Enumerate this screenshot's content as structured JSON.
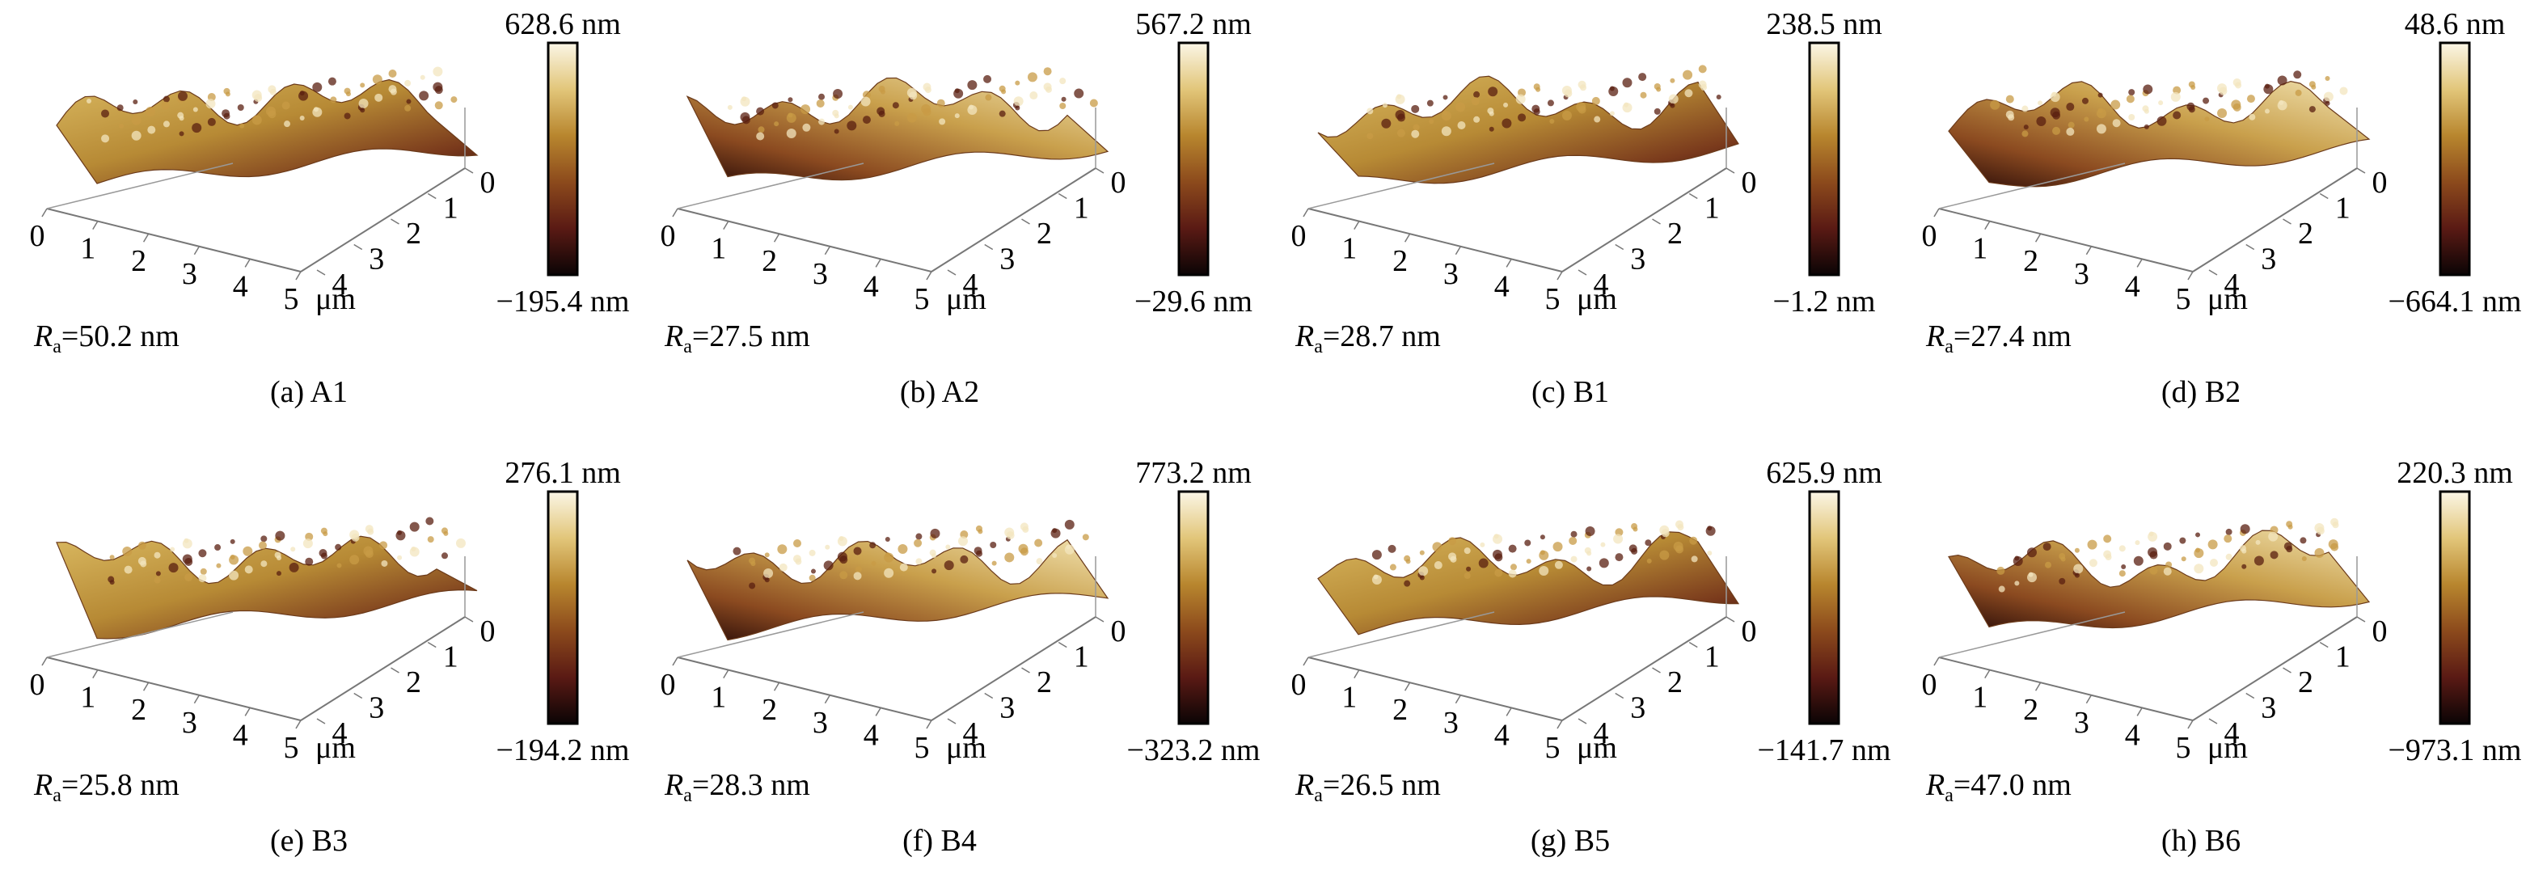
{
  "figure": {
    "panels": [
      {
        "id": "a",
        "caption": "(a) A1",
        "ra": "=50.2 nm",
        "cb_max": "628.6 nm",
        "cb_min": "−195.4 nm"
      },
      {
        "id": "b",
        "caption": "(b) A2",
        "ra": "=27.5 nm",
        "cb_max": "567.2 nm",
        "cb_min": "−29.6 nm"
      },
      {
        "id": "c",
        "caption": "(c) B1",
        "ra": "=28.7 nm",
        "cb_max": "238.5 nm",
        "cb_min": "−1.2 nm"
      },
      {
        "id": "d",
        "caption": "(d) B2",
        "ra": "=27.4 nm",
        "cb_max": "48.6 nm",
        "cb_min": "−664.1 nm"
      },
      {
        "id": "e",
        "caption": "(e) B3",
        "ra": "=25.8 nm",
        "cb_max": "276.1 nm",
        "cb_min": "−194.2 nm"
      },
      {
        "id": "f",
        "caption": "(f) B4",
        "ra": "=28.3 nm",
        "cb_max": "773.2 nm",
        "cb_min": "−323.2 nm"
      },
      {
        "id": "g",
        "caption": "(g) B5",
        "ra": "=26.5 nm",
        "cb_max": "625.9 nm",
        "cb_min": "−141.7 nm"
      },
      {
        "id": "h",
        "caption": "(h) B6",
        "ra": "=47.0 nm",
        "cb_max": "220.3 nm",
        "cb_min": "−973.1 nm"
      }
    ],
    "x_ticks": [
      "0",
      "1",
      "2",
      "3",
      "4",
      "5"
    ],
    "y_ticks": [
      "0",
      "1",
      "2",
      "3",
      "4"
    ],
    "unit": "μm",
    "ra_symbol": "R",
    "ra_subscript": "a",
    "colormap": [
      "#0b0405",
      "#5a1a14",
      "#8c4a1c",
      "#b8862e",
      "#e2c67a",
      "#fbf6e6"
    ]
  }
}
